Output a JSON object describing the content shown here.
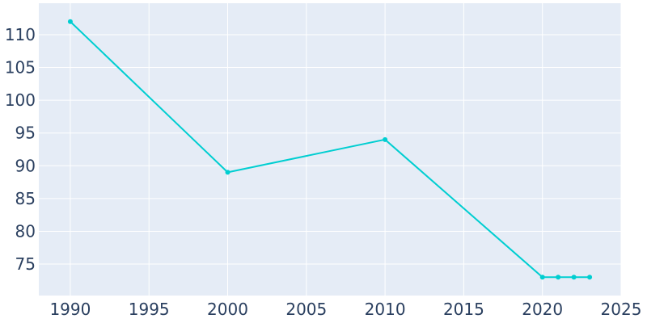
{
  "chart_data": {
    "type": "line",
    "title": "",
    "xlabel": "",
    "ylabel": "",
    "x": [
      1990,
      2000,
      2010,
      2020,
      2021,
      2022,
      2023
    ],
    "series": [
      {
        "values": [
          112,
          89,
          94,
          73,
          73,
          73,
          73
        ]
      }
    ],
    "xlim": [
      1988,
      2025
    ],
    "ylim": [
      70.2,
      114.8
    ],
    "xticks": [
      1990,
      1995,
      2000,
      2005,
      2010,
      2015,
      2020,
      2025
    ],
    "yticks": [
      75,
      80,
      85,
      90,
      95,
      100,
      105,
      110
    ],
    "grid": true,
    "legend": "none",
    "colors": {
      "line": "#00ced1",
      "plot_bg": "#e5ecf6",
      "grid": "#ffffff",
      "text": "#2a3f5f"
    }
  }
}
